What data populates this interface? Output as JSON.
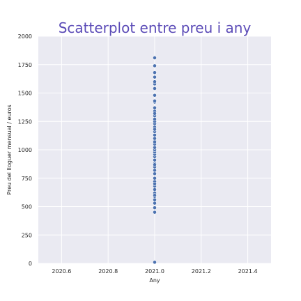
{
  "colors": {
    "title": "#5b4bb7",
    "plot_bg": "#eaeaf2",
    "point": "#4c72b0"
  },
  "chart_data": {
    "type": "scatter",
    "title": "Scatterplot entre preu i any",
    "xlabel": "Any",
    "ylabel": "Preu del lloguer mensual / euros",
    "xlim": [
      2020.5,
      2021.5
    ],
    "ylim": [
      0,
      2000
    ],
    "xticks": [
      2020.6,
      2020.8,
      2021.0,
      2021.2,
      2021.4
    ],
    "xtick_labels": [
      "2020.6",
      "2020.8",
      "2021.0",
      "2021.2",
      "2021.4"
    ],
    "yticks": [
      0,
      250,
      500,
      750,
      1000,
      1250,
      1500,
      1750,
      2000
    ],
    "ytick_labels": [
      "0",
      "250",
      "500",
      "750",
      "1000",
      "1250",
      "1500",
      "1750",
      "2000"
    ],
    "grid": true,
    "x": [
      2021,
      2021,
      2021,
      2021,
      2021,
      2021,
      2021,
      2021,
      2021,
      2021,
      2021,
      2021,
      2021,
      2021,
      2021,
      2021,
      2021,
      2021,
      2021,
      2021,
      2021,
      2021,
      2021,
      2021,
      2021,
      2021,
      2021,
      2021,
      2021,
      2021,
      2021,
      2021,
      2021,
      2021,
      2021,
      2021,
      2021,
      2021,
      2021,
      2021,
      2021,
      2021,
      2021,
      2021,
      2021,
      2021,
      2021,
      2021,
      2021
    ],
    "y": [
      10,
      450,
      490,
      530,
      560,
      590,
      620,
      650,
      680,
      720,
      750,
      790,
      820,
      850,
      880,
      910,
      940,
      960,
      980,
      1000,
      1020,
      1050,
      1080,
      1100,
      1130,
      1160,
      1200,
      1230,
      1250,
      1270,
      1300,
      1340,
      1370,
      1420,
      1430,
      1540,
      1580,
      1600,
      1680,
      1810,
      1740,
      1640,
      1480,
      1320,
      1180,
      1070,
      870,
      700,
      600
    ]
  }
}
